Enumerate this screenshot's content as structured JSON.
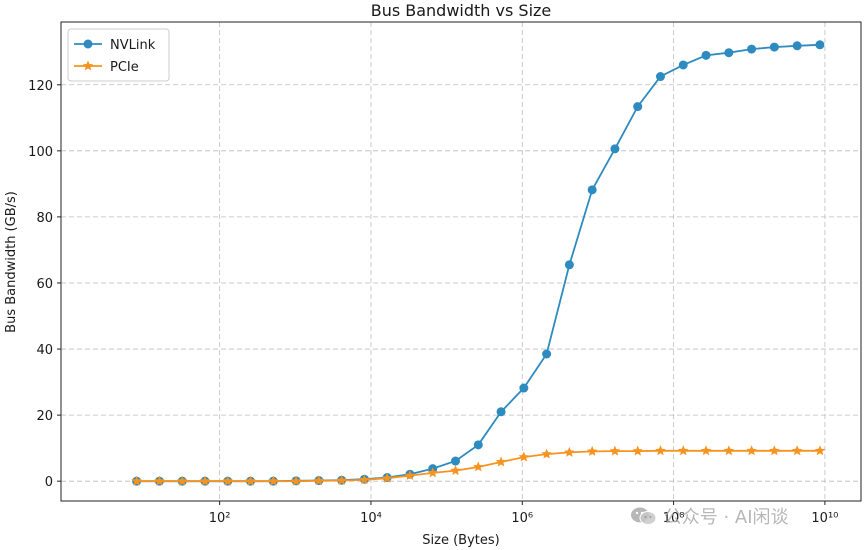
{
  "chart_data": {
    "type": "line",
    "title": "Bus Bandwidth vs Size",
    "xlabel": "Size (Bytes)",
    "ylabel": "Bus Bandwidth (GB/s)",
    "xscale": "log",
    "xlim": [
      0.8,
      30000000000.0
    ],
    "ylim": [
      -6,
      139
    ],
    "xticks": [
      {
        "value": 100,
        "label": "10²"
      },
      {
        "value": 10000,
        "label": "10⁴"
      },
      {
        "value": 1000000,
        "label": "10⁶"
      },
      {
        "value": 100000000,
        "label": "10⁸"
      },
      {
        "value": 10000000000,
        "label": "10¹⁰"
      }
    ],
    "yticks": [
      0,
      20,
      40,
      60,
      80,
      100,
      120
    ],
    "grid": true,
    "legend_position": "top-left",
    "x": [
      8,
      16,
      32,
      64,
      128,
      256,
      512,
      1024,
      2048,
      4096,
      8192,
      16384,
      32768,
      65536,
      131072,
      262144,
      524288,
      1048576,
      2097152,
      4194304,
      8388608,
      16777216,
      33554432,
      67108864,
      134217728,
      268435456,
      536870912,
      1073741824,
      2147483648,
      4294967296,
      8589934592
    ],
    "series": [
      {
        "name": "NVLink",
        "color": "#2e8bc0",
        "marker": "circle",
        "values": [
          0.0,
          0.0,
          0.0,
          0.0,
          0.0,
          0.0,
          0.0,
          0.1,
          0.2,
          0.3,
          0.6,
          1.1,
          2.1,
          3.8,
          6.1,
          11.0,
          21.0,
          28.2,
          38.5,
          65.5,
          88.2,
          100.6,
          113.4,
          122.5,
          126.0,
          128.9,
          129.7,
          130.8,
          131.4,
          131.8,
          132.1
        ]
      },
      {
        "name": "PCIe",
        "color": "#f7931e",
        "marker": "star",
        "values": [
          0.0,
          0.0,
          0.0,
          0.0,
          0.0,
          0.0,
          0.0,
          0.0,
          0.1,
          0.2,
          0.4,
          0.9,
          1.7,
          2.5,
          3.2,
          4.3,
          5.8,
          7.3,
          8.2,
          8.7,
          9.0,
          9.1,
          9.1,
          9.2,
          9.2,
          9.2,
          9.2,
          9.2,
          9.2,
          9.2,
          9.2
        ]
      }
    ]
  },
  "watermark": {
    "text": "公众号 · AI闲谈"
  }
}
